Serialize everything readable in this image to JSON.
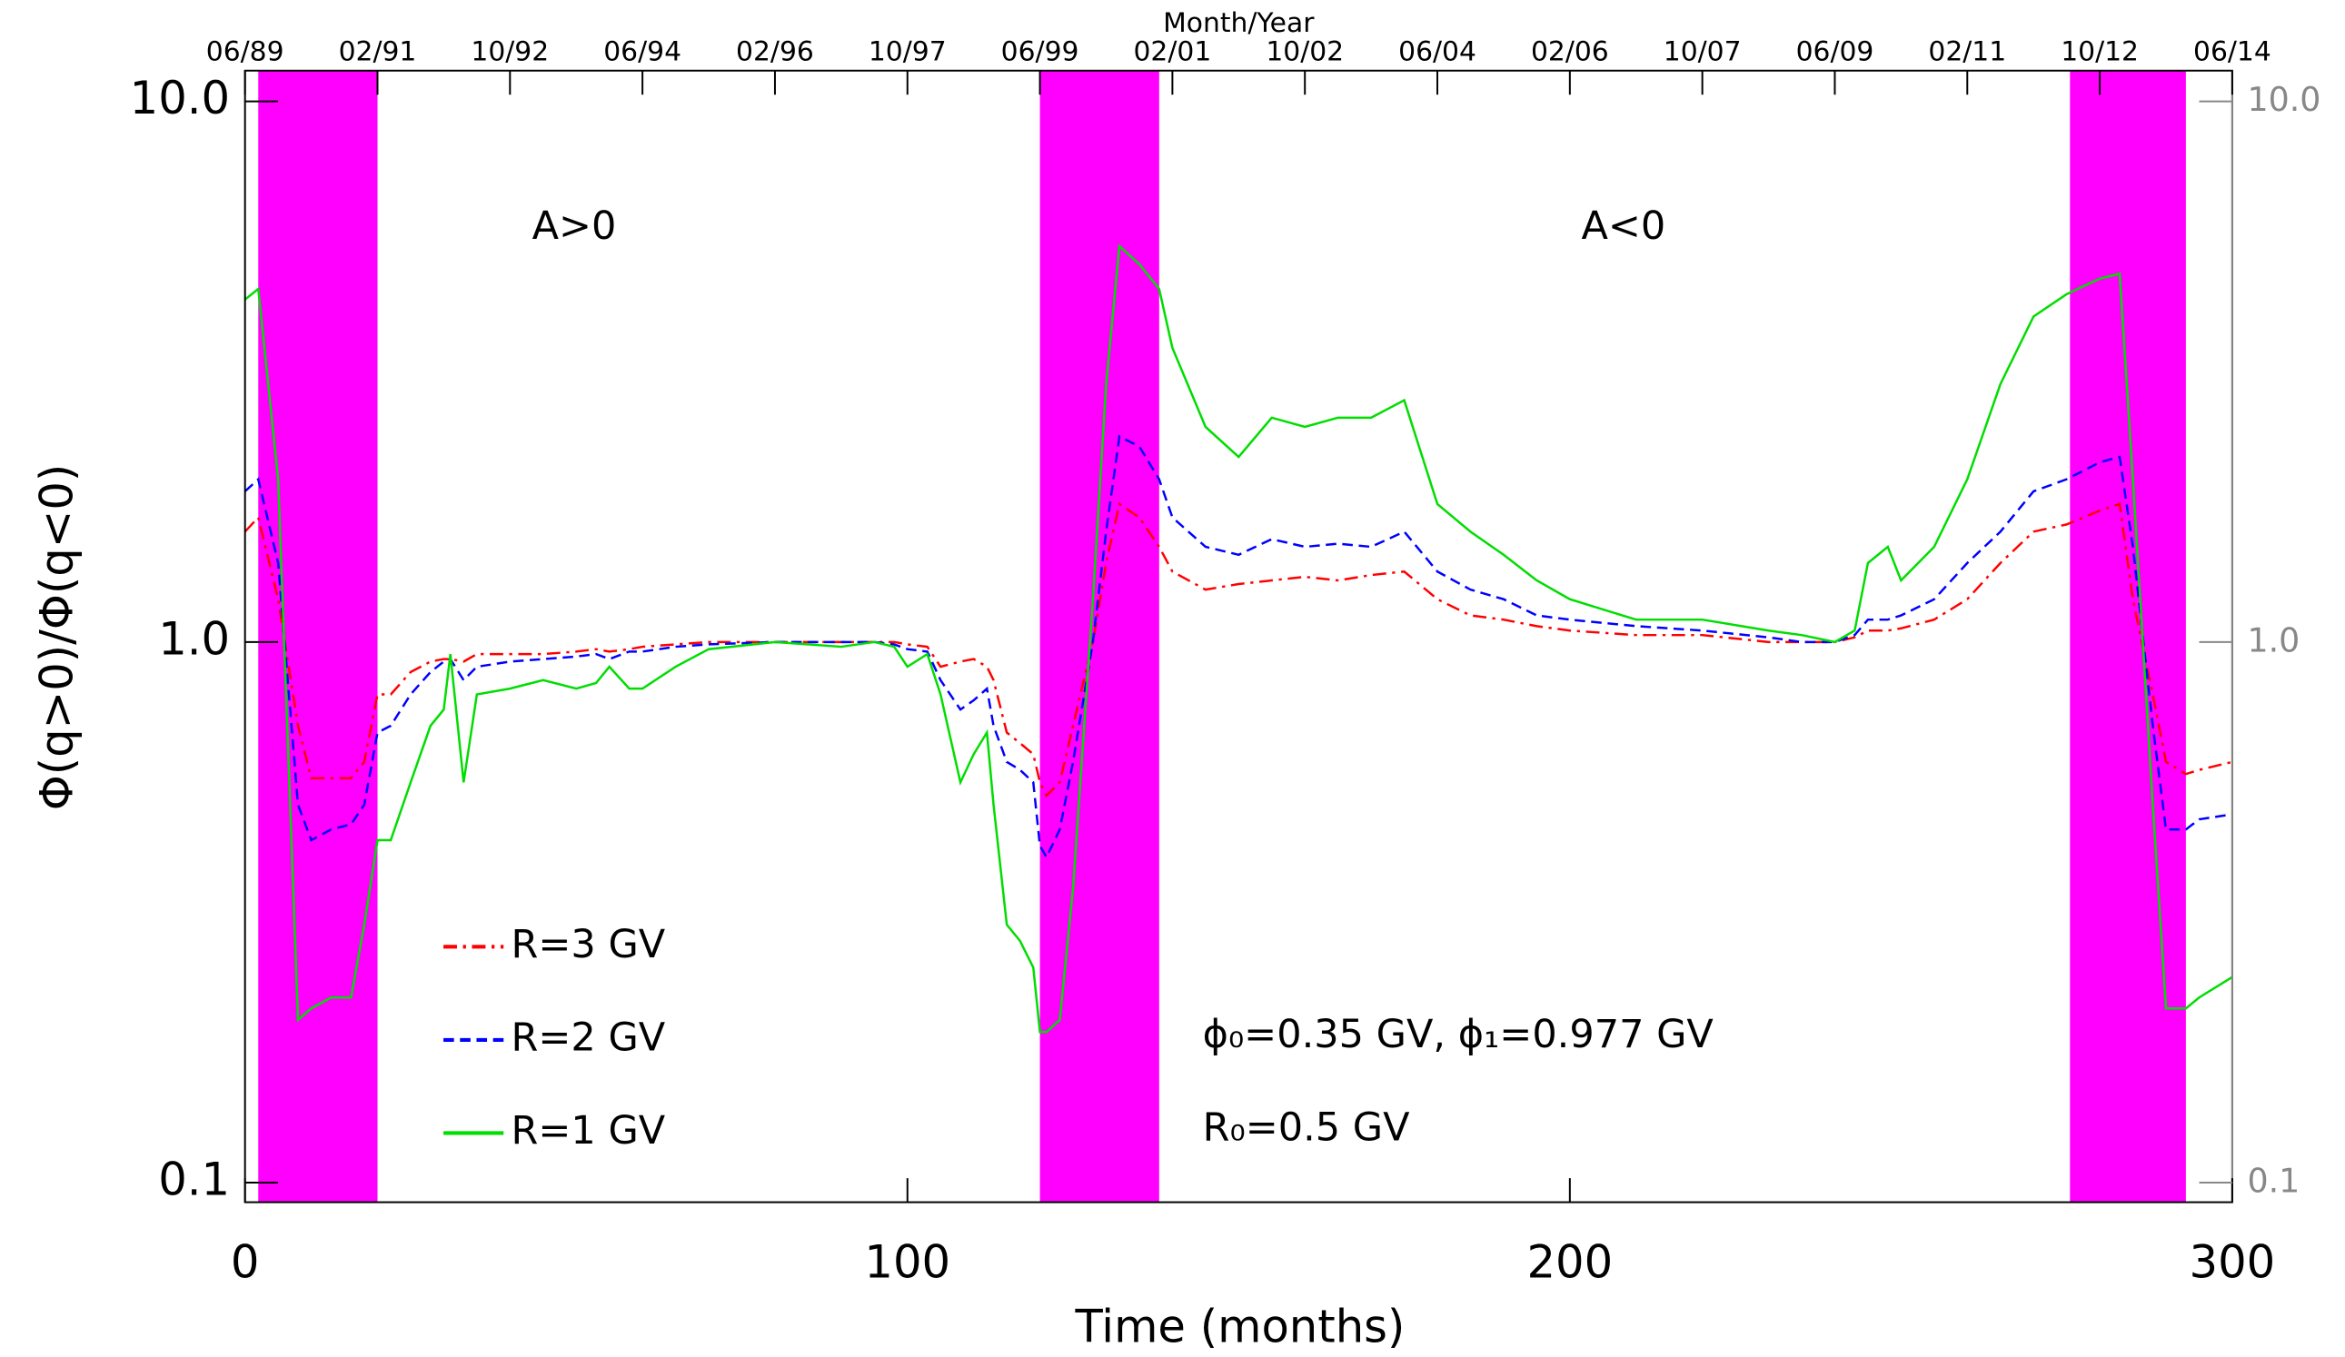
{
  "chart_data": {
    "type": "line",
    "ylabel": "Φ(q>0)/Φ(q<0)",
    "xlabel": "Time (months)",
    "x2label": "Month/Year",
    "xlim": [
      0,
      300
    ],
    "xticks": [
      0,
      100,
      200,
      300
    ],
    "x2ticks": [
      {
        "value": 0,
        "label": "06/89"
      },
      {
        "value": 20,
        "label": "02/91"
      },
      {
        "value": 40,
        "label": "10/92"
      },
      {
        "value": 60,
        "label": "06/94"
      },
      {
        "value": 80,
        "label": "02/96"
      },
      {
        "value": 100,
        "label": "10/97"
      },
      {
        "value": 120,
        "label": "06/99"
      },
      {
        "value": 140,
        "label": "02/01"
      },
      {
        "value": 160,
        "label": "10/02"
      },
      {
        "value": 180,
        "label": "06/04"
      },
      {
        "value": 200,
        "label": "02/06"
      },
      {
        "value": 220,
        "label": "10/07"
      },
      {
        "value": 240,
        "label": "06/09"
      },
      {
        "value": 260,
        "label": "02/11"
      },
      {
        "value": 280,
        "label": "10/12"
      },
      {
        "value": 300,
        "label": "06/14"
      }
    ],
    "ylim": [
      0.092,
      11.4
    ],
    "log_y": true,
    "yticks": [
      {
        "value": 10,
        "label": "10.0"
      },
      {
        "value": 1,
        "label": "1.0"
      },
      {
        "value": 0.1,
        "label": "0.1"
      }
    ],
    "bands": [
      [
        2,
        20
      ],
      [
        120,
        138
      ],
      [
        275.5,
        293
      ]
    ],
    "band_color": "#ff00ff",
    "annotations": [
      "A>0",
      "A<0",
      "ϕ₀=0.35 GV,   ϕ₁=0.977 GV",
      "R₀=0.5 GV"
    ],
    "x": [
      0,
      2,
      5,
      8,
      10,
      13,
      16,
      18,
      20,
      22,
      25,
      28,
      30,
      31,
      33,
      35,
      40,
      45,
      50,
      53,
      55,
      58,
      60,
      65,
      70,
      80,
      90,
      95,
      98,
      100,
      103,
      105,
      108,
      110,
      112,
      113,
      115,
      117,
      119,
      120,
      121,
      123,
      125,
      128,
      130,
      132,
      135,
      138,
      140,
      145,
      150,
      155,
      160,
      165,
      170,
      175,
      180,
      185,
      190,
      195,
      200,
      210,
      220,
      230,
      235,
      240,
      243,
      245,
      248,
      250,
      255,
      260,
      265,
      270,
      275,
      280,
      283,
      285,
      288,
      290,
      293,
      295,
      300
    ],
    "series": [
      {
        "name": "R=3 GV",
        "color": "#ff0000",
        "dash": "dashdot",
        "values": [
          1.6,
          1.7,
          1.2,
          0.7,
          0.56,
          0.56,
          0.56,
          0.6,
          0.8,
          0.8,
          0.88,
          0.92,
          0.93,
          0.93,
          0.92,
          0.95,
          0.95,
          0.95,
          0.96,
          0.97,
          0.96,
          0.97,
          0.98,
          0.99,
          1.0,
          1.0,
          1.0,
          1.0,
          1.0,
          0.99,
          0.98,
          0.9,
          0.92,
          0.93,
          0.9,
          0.85,
          0.68,
          0.65,
          0.62,
          0.55,
          0.52,
          0.55,
          0.7,
          1.0,
          1.4,
          1.8,
          1.7,
          1.5,
          1.35,
          1.25,
          1.28,
          1.3,
          1.32,
          1.3,
          1.33,
          1.35,
          1.2,
          1.12,
          1.1,
          1.07,
          1.05,
          1.03,
          1.03,
          1.0,
          1.0,
          1.0,
          1.02,
          1.05,
          1.05,
          1.06,
          1.1,
          1.2,
          1.4,
          1.6,
          1.65,
          1.75,
          1.8,
          1.2,
          0.8,
          0.6,
          0.57,
          0.58,
          0.6
        ]
      },
      {
        "name": "R=2 GV",
        "color": "#0000ff",
        "dash": "dashed",
        "values": [
          1.9,
          2.0,
          1.4,
          0.5,
          0.43,
          0.45,
          0.46,
          0.5,
          0.68,
          0.7,
          0.8,
          0.88,
          0.92,
          0.93,
          0.85,
          0.9,
          0.92,
          0.93,
          0.94,
          0.95,
          0.93,
          0.96,
          0.96,
          0.98,
          0.99,
          1.0,
          1.0,
          1.0,
          0.99,
          0.97,
          0.96,
          0.85,
          0.75,
          0.78,
          0.82,
          0.7,
          0.6,
          0.58,
          0.55,
          0.42,
          0.4,
          0.45,
          0.6,
          1.0,
          1.6,
          2.4,
          2.3,
          2.0,
          1.7,
          1.5,
          1.45,
          1.55,
          1.5,
          1.52,
          1.5,
          1.6,
          1.35,
          1.25,
          1.2,
          1.12,
          1.1,
          1.07,
          1.05,
          1.02,
          1.0,
          1.0,
          1.03,
          1.1,
          1.1,
          1.12,
          1.2,
          1.4,
          1.6,
          1.9,
          2.0,
          2.15,
          2.2,
          1.5,
          0.7,
          0.45,
          0.45,
          0.47,
          0.48
        ]
      },
      {
        "name": "R=1 GV",
        "color": "#00dd00",
        "dash": "solid",
        "values": [
          4.3,
          4.5,
          2.0,
          0.2,
          0.21,
          0.22,
          0.22,
          0.3,
          0.43,
          0.43,
          0.55,
          0.7,
          0.75,
          0.95,
          0.55,
          0.8,
          0.82,
          0.85,
          0.82,
          0.84,
          0.9,
          0.82,
          0.82,
          0.9,
          0.97,
          1.0,
          0.98,
          1.0,
          0.98,
          0.9,
          0.95,
          0.8,
          0.55,
          0.62,
          0.68,
          0.5,
          0.3,
          0.28,
          0.25,
          0.19,
          0.19,
          0.2,
          0.35,
          1.2,
          3.0,
          5.4,
          5.0,
          4.5,
          3.5,
          2.5,
          2.2,
          2.6,
          2.5,
          2.6,
          2.6,
          2.8,
          1.8,
          1.6,
          1.45,
          1.3,
          1.2,
          1.1,
          1.1,
          1.05,
          1.03,
          1.0,
          1.05,
          1.4,
          1.5,
          1.3,
          1.5,
          2.0,
          3.0,
          4.0,
          4.4,
          4.7,
          4.8,
          2.0,
          0.5,
          0.21,
          0.21,
          0.22,
          0.24
        ]
      }
    ]
  }
}
